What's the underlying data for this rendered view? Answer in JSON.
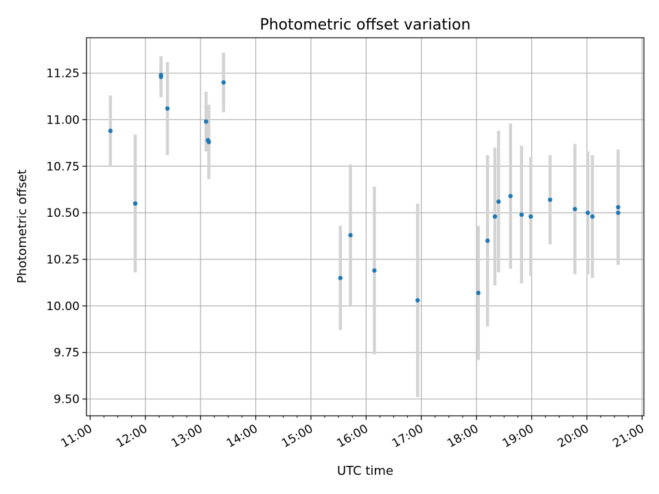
{
  "chart_data": {
    "type": "scatter",
    "title": "Photometric offset variation",
    "xlabel": "UTC time",
    "ylabel": "Photometric offset",
    "x_tick_labels": [
      "11:00",
      "12:00",
      "13:00",
      "14:00",
      "15:00",
      "16:00",
      "17:00",
      "18:00",
      "19:00",
      "20:00",
      "21:00"
    ],
    "x_tick_hours": [
      11,
      12,
      13,
      14,
      15,
      16,
      17,
      18,
      19,
      20,
      21
    ],
    "xlim": [
      "10:56",
      "21:02"
    ],
    "y_ticks": [
      9.5,
      9.75,
      10.0,
      10.25,
      10.5,
      10.75,
      11.0,
      11.25
    ],
    "y_tick_labels": [
      "9.50",
      "9.75",
      "10.00",
      "10.25",
      "10.50",
      "10.75",
      "11.00",
      "11.25"
    ],
    "ylim": [
      9.41,
      11.44
    ],
    "grid": true,
    "colors": {
      "point": "#1f77b4",
      "errorbar": "#d3d3d3",
      "grid": "#b0b0b0",
      "axes": "#000000"
    },
    "series": [
      {
        "points": [
          {
            "x": "11:22",
            "y": 10.94,
            "err": 0.19
          },
          {
            "x": "11:49",
            "y": 10.55,
            "err": 0.37
          },
          {
            "x": "12:17",
            "y": 11.23,
            "err": 0.11
          },
          {
            "x": "12:17",
            "y": 11.24,
            "err": 0.1
          },
          {
            "x": "12:24",
            "y": 11.06,
            "err": 0.25
          },
          {
            "x": "13:06",
            "y": 10.99,
            "err": 0.16
          },
          {
            "x": "13:08",
            "y": 10.89,
            "err": 0.06
          },
          {
            "x": "13:09",
            "y": 10.88,
            "err": 0.2
          },
          {
            "x": "13:25",
            "y": 11.2,
            "err": 0.16
          },
          {
            "x": "15:32",
            "y": 10.15,
            "err": 0.28
          },
          {
            "x": "15:43",
            "y": 10.38,
            "err": 0.38
          },
          {
            "x": "16:09",
            "y": 10.19,
            "err": 0.45
          },
          {
            "x": "16:56",
            "y": 10.03,
            "err": 0.52
          },
          {
            "x": "18:02",
            "y": 10.07,
            "err": 0.36
          },
          {
            "x": "18:12",
            "y": 10.35,
            "err": 0.46
          },
          {
            "x": "18:20",
            "y": 10.48,
            "err": 0.37
          },
          {
            "x": "18:24",
            "y": 10.56,
            "err": 0.38
          },
          {
            "x": "18:37",
            "y": 10.59,
            "err": 0.39
          },
          {
            "x": "18:49",
            "y": 10.49,
            "err": 0.37
          },
          {
            "x": "18:59",
            "y": 10.48,
            "err": 0.32
          },
          {
            "x": "19:20",
            "y": 10.57,
            "err": 0.24
          },
          {
            "x": "19:47",
            "y": 10.52,
            "err": 0.35
          },
          {
            "x": "20:01",
            "y": 10.5,
            "err": 0.33
          },
          {
            "x": "20:06",
            "y": 10.48,
            "err": 0.33
          },
          {
            "x": "20:34",
            "y": 10.5,
            "err": 0.28
          },
          {
            "x": "20:34",
            "y": 10.53,
            "err": 0.31
          }
        ]
      }
    ]
  }
}
